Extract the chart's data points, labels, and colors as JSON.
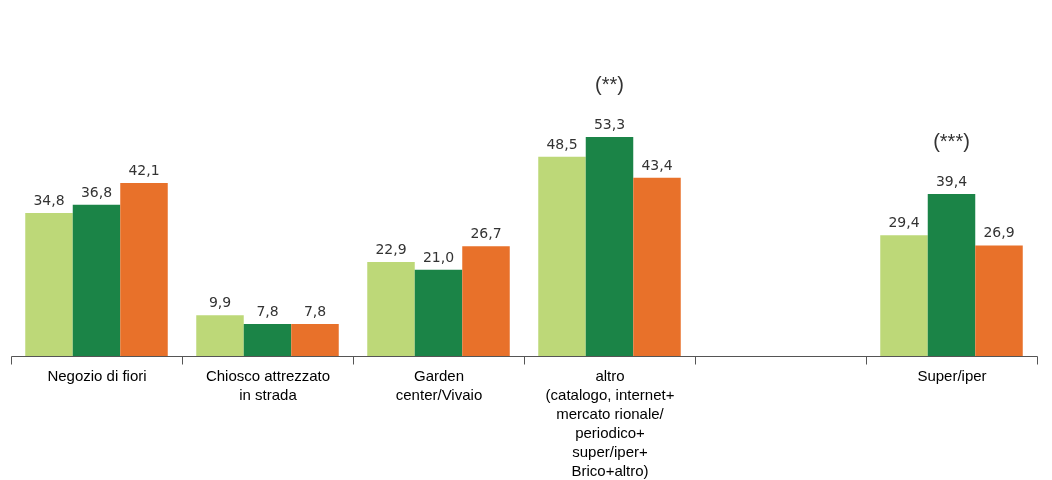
{
  "chart_data": {
    "type": "bar",
    "categories": [
      "Negozio di fiori",
      "Chiosco attrezzato\nin strada",
      "Garden\ncenter/Vivaio",
      "altro\n(catalogo, internet+\nmercato rionale/\nperiodico+\nsuper/iper+\nBrico+altro)",
      null,
      "Super/iper"
    ],
    "series": [
      {
        "color": "#bdd878",
        "values": [
          34.8,
          9.9,
          22.9,
          48.5,
          null,
          29.4
        ],
        "value_labels": [
          "34,8",
          "9,9",
          "22,9",
          "48,5",
          null,
          "29,4"
        ]
      },
      {
        "color": "#1b8447",
        "values": [
          36.8,
          7.8,
          21.0,
          53.3,
          null,
          39.4
        ],
        "value_labels": [
          "36,8",
          "7,8",
          "21,0",
          "53,3",
          null,
          "39,4"
        ]
      },
      {
        "color": "#e8712a",
        "values": [
          42.1,
          7.8,
          26.7,
          43.4,
          null,
          26.9
        ],
        "value_labels": [
          "42,1",
          "7,8",
          "26,7",
          "43,4",
          null,
          "26,9"
        ]
      }
    ],
    "grid": false,
    "legend": false,
    "tick_labels": "x",
    "annotations": [
      {
        "text": "(**)",
        "x": "altro\n(catalogo, internet+\nmercato rionale/\nperiodico+\nsuper/iper+\nBrico+altro)",
        "y": 53.3
      },
      {
        "text": "(***)",
        "x": "Super/iper",
        "y": 39.4
      }
    ]
  }
}
